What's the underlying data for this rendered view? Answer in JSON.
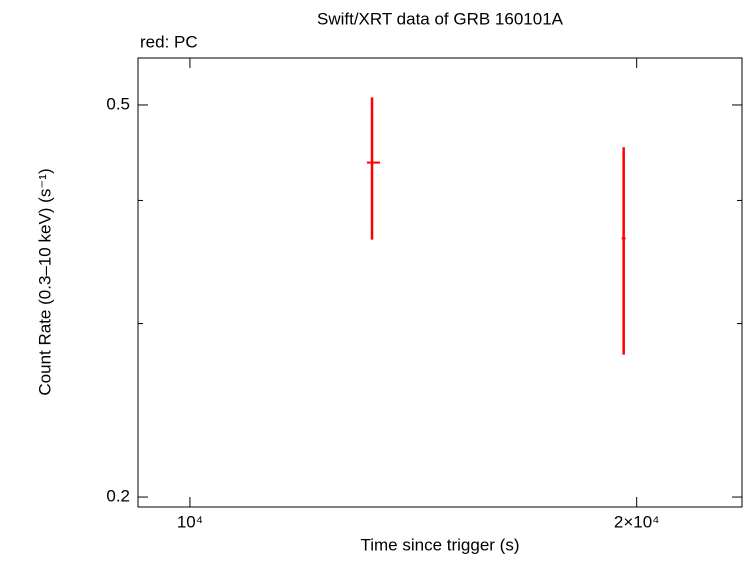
{
  "chart_data": {
    "type": "errorbar",
    "title": "Swift/XRT data of GRB 160101A",
    "subtitle": "red: PC",
    "x_label": "Time since trigger (s)",
    "y_label": "Count Rate (0.3–10 keV) (s⁻¹)",
    "xscale": "log",
    "yscale": "log",
    "xlim": [
      9226,
      23550
    ],
    "ylim": [
      0.1954,
      0.558
    ],
    "xticks": [
      {
        "value": 10000,
        "label": "10⁴"
      },
      {
        "value": 20000,
        "label": "2×10⁴"
      }
    ],
    "yticks": [
      0.2,
      0.5
    ],
    "yminor_ticks": [
      0.3,
      0.4
    ],
    "series": [
      {
        "color": "#ff0000",
        "x": [
          13265,
          19600
        ],
        "xerr_minus": [
          105,
          60
        ],
        "xerr_plus": [
          165,
          60
        ],
        "y": [
          0.437,
          0.366
        ],
        "yerr": [
          0.072,
          0.087
        ]
      }
    ]
  }
}
